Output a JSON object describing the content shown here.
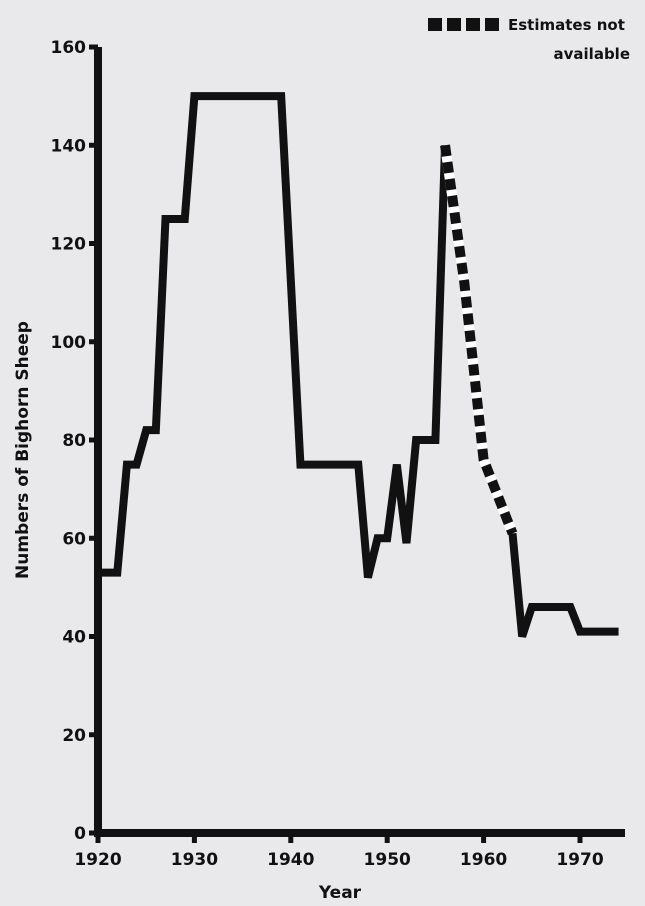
{
  "chart_data": {
    "type": "line",
    "xlabel": "Year",
    "ylabel": "Numbers of Bighorn Sheep",
    "xlim": [
      1920,
      1975
    ],
    "ylim": [
      0,
      160
    ],
    "x_ticks": [
      1920,
      1930,
      1940,
      1950,
      1960,
      1970
    ],
    "y_ticks": [
      0,
      20,
      40,
      60,
      80,
      100,
      120,
      140,
      160
    ],
    "grid": false,
    "legend_position": "top-right",
    "legend": [
      {
        "label_line1": "Estimates not",
        "label_line2": "available",
        "style": "dashed"
      }
    ],
    "series": [
      {
        "style": "solid",
        "points": [
          [
            1920,
            53
          ],
          [
            1922,
            53
          ],
          [
            1923,
            75
          ],
          [
            1924,
            75
          ],
          [
            1925,
            82
          ],
          [
            1926,
            82
          ],
          [
            1927,
            125
          ],
          [
            1929,
            125
          ],
          [
            1930,
            150
          ],
          [
            1939,
            150
          ],
          [
            1941,
            75
          ],
          [
            1947,
            75
          ],
          [
            1948,
            52
          ],
          [
            1949,
            60
          ],
          [
            1950,
            60
          ],
          [
            1951,
            75
          ],
          [
            1952,
            59
          ],
          [
            1953,
            80
          ],
          [
            1955,
            80
          ],
          [
            1956,
            140
          ]
        ]
      },
      {
        "style": "dashed",
        "points": [
          [
            1956,
            140
          ],
          [
            1958,
            112
          ],
          [
            1960,
            76
          ],
          [
            1963,
            61
          ]
        ]
      },
      {
        "style": "solid",
        "points": [
          [
            1963,
            61
          ],
          [
            1964,
            40
          ],
          [
            1965,
            46
          ],
          [
            1969,
            46
          ],
          [
            1970,
            41
          ],
          [
            1974,
            41
          ]
        ]
      }
    ]
  }
}
